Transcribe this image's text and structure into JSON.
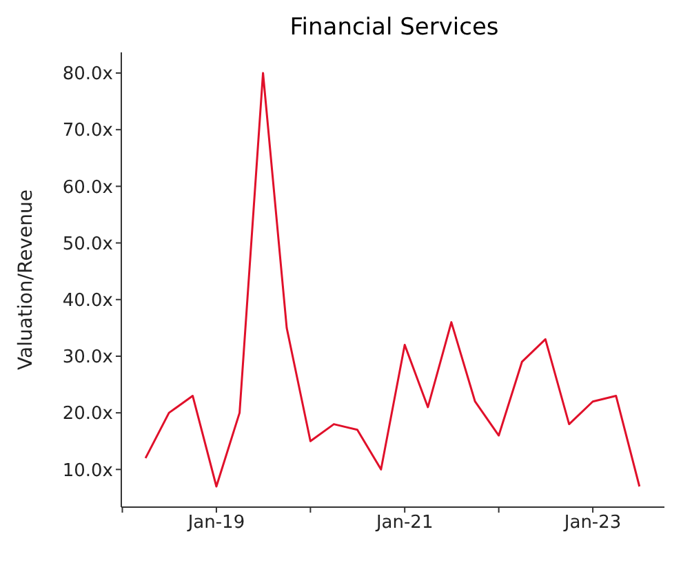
{
  "chart_data": {
    "type": "line",
    "title": "Financial Services",
    "ylabel": "Valuation/Revenue",
    "x": [
      "2018-04-01",
      "2018-07-01",
      "2018-10-01",
      "2019-01-01",
      "2019-04-01",
      "2019-07-01",
      "2019-10-01",
      "2020-01-01",
      "2020-04-01",
      "2020-07-01",
      "2020-10-01",
      "2021-01-01",
      "2021-04-01",
      "2021-07-01",
      "2021-10-01",
      "2022-01-01",
      "2022-04-01",
      "2022-07-01",
      "2022-10-01",
      "2023-01-01",
      "2023-04-01",
      "2023-07-01"
    ],
    "series": [
      {
        "color": "#e0102a",
        "values": [
          12,
          20,
          23,
          7,
          20,
          80,
          35,
          15,
          18,
          17,
          10,
          32,
          21,
          36,
          22,
          16,
          29,
          33,
          18,
          22,
          23,
          7
        ]
      }
    ],
    "xlim": [
      "2017-12-28",
      "2023-10-06"
    ],
    "xticks": [
      {
        "value": "2018-01-01",
        "label": null
      },
      {
        "value": "2019-01-01",
        "label": "Jan-19"
      },
      {
        "value": "2020-01-01",
        "label": null
      },
      {
        "value": "2021-01-01",
        "label": "Jan-21"
      },
      {
        "value": "2022-01-01",
        "label": null
      },
      {
        "value": "2023-01-01",
        "label": "Jan-23"
      }
    ],
    "ylim": [
      3.35,
      83.65
    ],
    "yticks": [
      {
        "value": 10,
        "label": "10.0x"
      },
      {
        "value": 20,
        "label": "20.0x"
      },
      {
        "value": 30,
        "label": "30.0x"
      },
      {
        "value": 40,
        "label": "40.0x"
      },
      {
        "value": 50,
        "label": "50.0x"
      },
      {
        "value": 60,
        "label": "60.0x"
      },
      {
        "value": 70,
        "label": "70.0x"
      },
      {
        "value": 80,
        "label": "80.0x"
      }
    ],
    "grid": false,
    "legend": false,
    "marker": "none",
    "line_style": "solid"
  }
}
